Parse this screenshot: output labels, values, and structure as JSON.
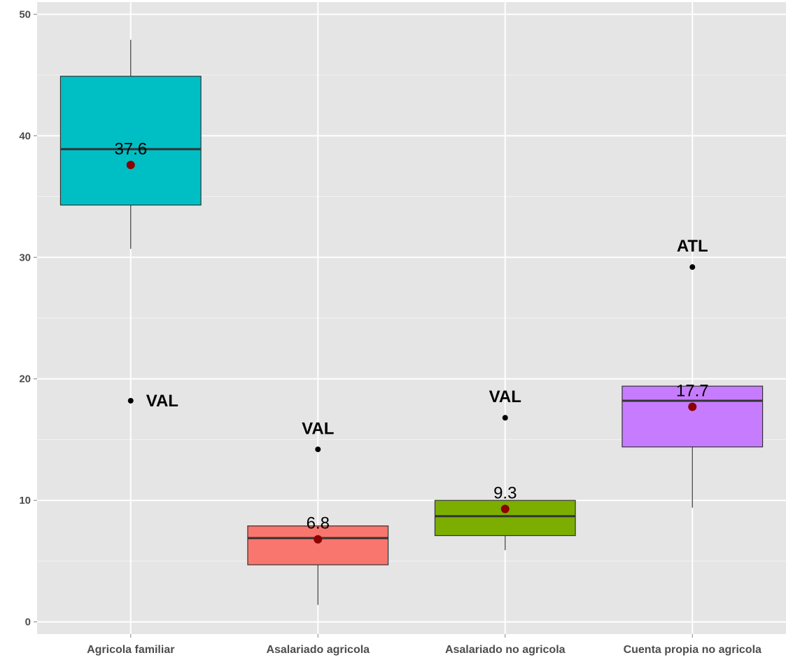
{
  "chart_data": {
    "type": "box",
    "title": "",
    "xlabel": "",
    "ylabel": "",
    "ylim": [
      -1,
      51
    ],
    "yticks": [
      0,
      10,
      20,
      30,
      40,
      50
    ],
    "grid": true,
    "legend": "none",
    "mean_color": "#8b0000",
    "categories": [
      "Agricola familiar",
      "Asalariado agricola",
      "Asalariado no agricola",
      "Cuenta propia no agricola"
    ],
    "boxes": [
      {
        "category": "Agricola familiar",
        "color": "#00bfc4",
        "whisker_low": 30.7,
        "q1": 34.3,
        "median": 38.9,
        "q3": 44.9,
        "whisker_high": 47.9,
        "mean": 37.6,
        "mean_label": "37.6",
        "outliers": [
          {
            "value": 18.2,
            "label": "VAL",
            "label_side": "right"
          }
        ]
      },
      {
        "category": "Asalariado agricola",
        "color": "#f8766d",
        "whisker_low": 1.4,
        "q1": 4.7,
        "median": 6.9,
        "q3": 7.9,
        "whisker_high": 7.9,
        "mean": 6.8,
        "mean_label": "6.8",
        "outliers": [
          {
            "value": 14.2,
            "label": "VAL",
            "label_side": "above"
          }
        ]
      },
      {
        "category": "Asalariado no agricola",
        "color": "#7cae00",
        "whisker_low": 5.9,
        "q1": 7.1,
        "median": 8.7,
        "q3": 10.0,
        "whisker_high": 10.0,
        "mean": 9.3,
        "mean_label": "9.3",
        "outliers": [
          {
            "value": 16.8,
            "label": "VAL",
            "label_side": "above"
          }
        ]
      },
      {
        "category": "Cuenta propia no agricola",
        "color": "#c77cff",
        "whisker_low": 9.4,
        "q1": 14.4,
        "median": 18.2,
        "q3": 19.4,
        "whisker_high": 19.4,
        "mean": 17.7,
        "mean_label": "17.7",
        "outliers": [
          {
            "value": 29.2,
            "label": "ATL",
            "label_side": "above"
          }
        ]
      }
    ]
  }
}
